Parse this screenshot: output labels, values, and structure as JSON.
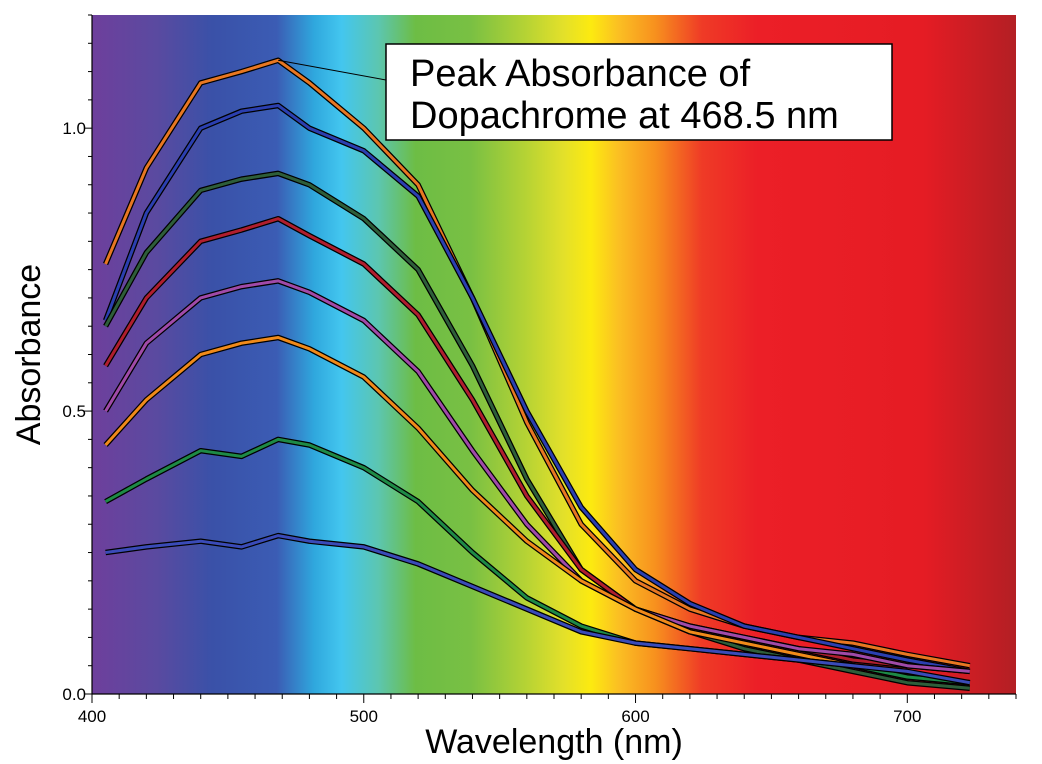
{
  "chart_data": {
    "type": "line",
    "title": "",
    "xlabel": "Wavelength (nm)",
    "ylabel": "Absorbance",
    "xlim": [
      400,
      740
    ],
    "ylim": [
      0,
      1.2
    ],
    "x_ticks": [
      400,
      500,
      600,
      700
    ],
    "x_tick_labels": [
      "400",
      "500",
      "600",
      "700"
    ],
    "y_ticks": [
      0.0,
      0.5,
      1.0
    ],
    "y_tick_labels": [
      "0.0",
      "0.5",
      "1.0"
    ],
    "grid": false,
    "legend": "none",
    "background": "visible-spectrum gradient from violet (400 nm) to dark red (740 nm)",
    "annotation": {
      "lines": [
        "Peak Absorbance of",
        "Dopachrome at 468.5 nm"
      ],
      "points_to": {
        "x": 468.5,
        "y": 1.12
      }
    },
    "x": [
      405,
      420,
      440,
      455,
      468.5,
      480,
      500,
      520,
      540,
      560,
      580,
      600,
      620,
      640,
      660,
      680,
      700,
      723
    ],
    "series": [
      {
        "color": "#e87722",
        "values": [
          0.76,
          0.93,
          1.08,
          1.1,
          1.12,
          1.08,
          1.0,
          0.9,
          0.7,
          0.48,
          0.3,
          0.2,
          0.15,
          0.12,
          0.1,
          0.09,
          0.07,
          0.05
        ]
      },
      {
        "color": "#2b3fb0",
        "values": [
          0.66,
          0.85,
          1.0,
          1.03,
          1.04,
          1.0,
          0.96,
          0.88,
          0.7,
          0.5,
          0.33,
          0.22,
          0.16,
          0.12,
          0.1,
          0.08,
          0.06,
          0.04
        ]
      },
      {
        "color": "#2e5e3a",
        "values": [
          0.65,
          0.78,
          0.89,
          0.91,
          0.92,
          0.9,
          0.84,
          0.75,
          0.58,
          0.38,
          0.22,
          0.15,
          0.11,
          0.08,
          0.06,
          0.04,
          0.02,
          0.01
        ]
      },
      {
        "color": "#b01e2e",
        "values": [
          0.58,
          0.7,
          0.8,
          0.82,
          0.84,
          0.81,
          0.76,
          0.67,
          0.52,
          0.35,
          0.22,
          0.15,
          0.12,
          0.1,
          0.08,
          0.06,
          0.05,
          0.04
        ]
      },
      {
        "color": "#a04aa8",
        "values": [
          0.5,
          0.62,
          0.7,
          0.72,
          0.73,
          0.71,
          0.66,
          0.57,
          0.43,
          0.3,
          0.2,
          0.15,
          0.12,
          0.1,
          0.08,
          0.07,
          0.05,
          0.04
        ]
      },
      {
        "color": "#f08a1a",
        "values": [
          0.44,
          0.52,
          0.6,
          0.62,
          0.63,
          0.61,
          0.56,
          0.47,
          0.36,
          0.27,
          0.2,
          0.15,
          0.11,
          0.09,
          0.07,
          0.05,
          0.03,
          0.02
        ]
      },
      {
        "color": "#1e8a46",
        "values": [
          0.34,
          0.38,
          0.43,
          0.42,
          0.45,
          0.44,
          0.4,
          0.34,
          0.25,
          0.17,
          0.12,
          0.09,
          0.08,
          0.07,
          0.06,
          0.05,
          0.03,
          0.02
        ]
      },
      {
        "color": "#3a4bb8",
        "values": [
          0.25,
          0.26,
          0.27,
          0.26,
          0.28,
          0.27,
          0.26,
          0.23,
          0.19,
          0.15,
          0.11,
          0.09,
          0.08,
          0.07,
          0.06,
          0.05,
          0.04,
          0.02
        ]
      }
    ]
  }
}
